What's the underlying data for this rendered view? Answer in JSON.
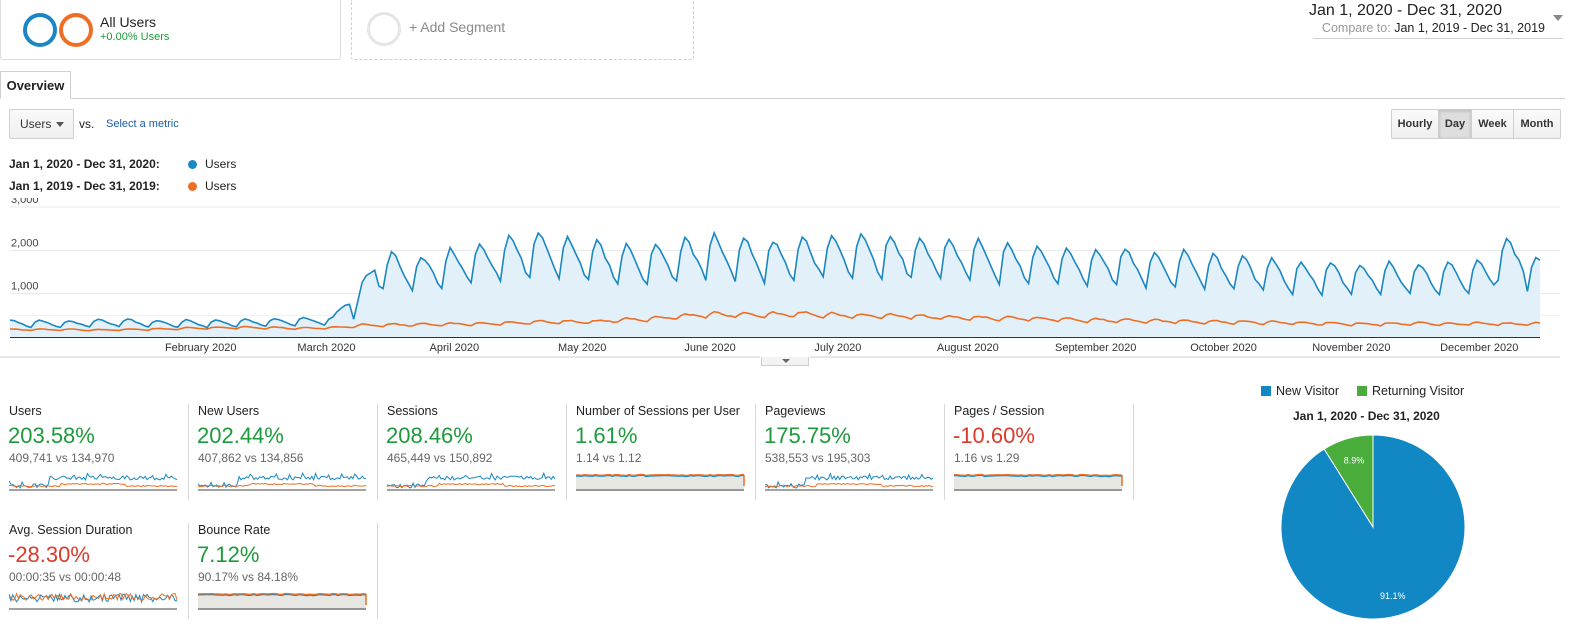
{
  "segments": {
    "all_users": {
      "title": "All Users",
      "subtitle": "+0.00% Users"
    },
    "add_segment": "+ Add Segment"
  },
  "date_range": {
    "main": "Jan 1, 2020 - Dec 31, 2020",
    "compare_label": "Compare to:",
    "compare_value": "Jan 1, 2019 - Dec 31, 2019"
  },
  "tabs": {
    "overview": "Overview"
  },
  "metric_selector": {
    "primary": "Users",
    "vs": "vs.",
    "secondary": "Select a metric"
  },
  "granularity": [
    "Hourly",
    "Day",
    "Week",
    "Month"
  ],
  "granularity_active": "Day",
  "legend": [
    {
      "range": "Jan 1, 2020 - Dec 31, 2020:",
      "metric": "Users",
      "color": "#1a87c3"
    },
    {
      "range": "Jan 1, 2019 - Dec 31, 2019:",
      "metric": "Users",
      "color": "#ee6e24"
    }
  ],
  "chart_data": {
    "type": "line",
    "y_ticks": [
      "3,000",
      "2,000",
      "1,000"
    ],
    "ylim": [
      0,
      3000
    ],
    "x_labels": [
      "February 2020",
      "March 2020",
      "April 2020",
      "May 2020",
      "June 2020",
      "July 2020",
      "August 2020",
      "September 2020",
      "October 2020",
      "November 2020",
      "December 2020"
    ],
    "grid": true,
    "fill_current": true,
    "series": [
      {
        "name": "Users",
        "color": "#1a87c3",
        "weekly": [
          320,
          310,
          300,
          330,
          340,
          310,
          320,
          310,
          330,
          340,
          370,
          380,
          1300,
          1600,
          1500,
          1650,
          1700,
          1850,
          1950,
          1850,
          1800,
          1700,
          1700,
          1850,
          1900,
          1850,
          1800,
          1850,
          1900,
          1950,
          1900,
          1850,
          1850,
          1800,
          1750,
          1700,
          1650,
          1650,
          1650,
          1600,
          1600,
          1550,
          1500,
          1450,
          1400,
          1400,
          1350,
          1400,
          1350,
          1400,
          1450,
          1500
        ]
      },
      {
        "name": "Users",
        "color": "#ee6e24",
        "weekly": [
          170,
          170,
          170,
          160,
          170,
          180,
          200,
          210,
          220,
          210,
          200,
          210,
          270,
          280,
          290,
          300,
          300,
          320,
          350,
          350,
          350,
          400,
          420,
          480,
          520,
          500,
          520,
          530,
          510,
          490,
          480,
          470,
          450,
          440,
          430,
          420,
          400,
          390,
          380,
          370,
          360,
          350,
          340,
          330,
          320,
          310,
          300,
          300,
          310,
          300,
          310,
          300
        ]
      }
    ]
  },
  "scorecards": [
    {
      "label": "Users",
      "pct": "203.58%",
      "trend": "pos",
      "compare": "409,741 vs 134,970",
      "spark": "trend"
    },
    {
      "label": "New Users",
      "pct": "202.44%",
      "trend": "pos",
      "compare": "407,862 vs 134,856",
      "spark": "trend"
    },
    {
      "label": "Sessions",
      "pct": "208.46%",
      "trend": "pos",
      "compare": "465,449 vs 150,892",
      "spark": "trend"
    },
    {
      "label": "Number of Sessions per User",
      "pct": "1.61%",
      "trend": "pos",
      "compare": "1.14 vs 1.12",
      "spark": "flat"
    },
    {
      "label": "Pageviews",
      "pct": "175.75%",
      "trend": "pos",
      "compare": "538,553 vs 195,303",
      "spark": "trend"
    },
    {
      "label": "Pages / Session",
      "pct": "-10.60%",
      "trend": "neg",
      "compare": "1.16 vs 1.29",
      "spark": "flat"
    },
    {
      "label": "Avg. Session Duration",
      "pct": "-28.30%",
      "trend": "neg",
      "compare": "00:00:35 vs 00:00:48",
      "spark": "noisy"
    },
    {
      "label": "Bounce Rate",
      "pct": "7.12%",
      "trend": "pos",
      "compare": "90.17% vs 84.18%",
      "spark": "flat"
    }
  ],
  "pie": {
    "legend": [
      {
        "label": "New Visitor",
        "color": "#1187c3"
      },
      {
        "label": "Returning Visitor",
        "color": "#4aac3b"
      }
    ],
    "title": "Jan 1, 2020 - Dec 31, 2020",
    "slices": [
      {
        "label": "91.1%",
        "value": 91.1,
        "color": "#1187c3"
      },
      {
        "label": "8.9%",
        "value": 8.9,
        "color": "#4aac3b"
      }
    ]
  }
}
